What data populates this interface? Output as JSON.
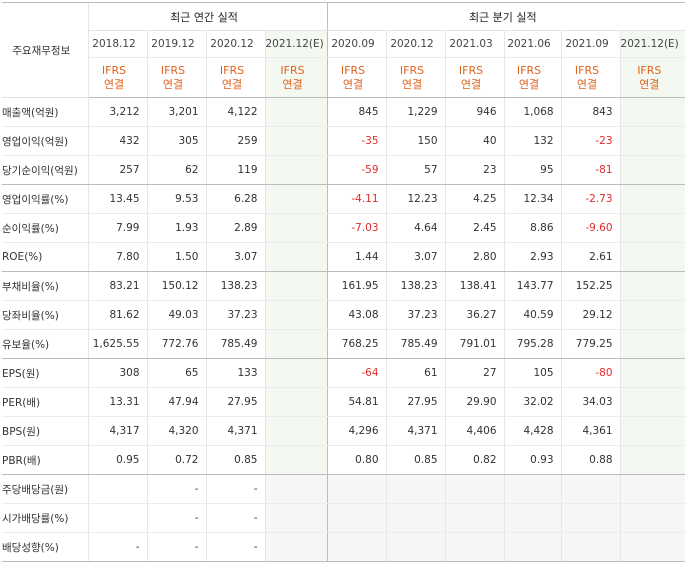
{
  "header": {
    "label_col": "주요재무정보",
    "annual_group": "최근 연간 실적",
    "quarterly_group": "최근 분기 실적",
    "annual_periods": [
      "2018.12",
      "2019.12",
      "2020.12",
      "2021.12(E)"
    ],
    "quarterly_periods": [
      "2020.09",
      "2020.12",
      "2021.03",
      "2021.06",
      "2021.09",
      "2021.12(E)"
    ],
    "ifrs_top": "IFRS",
    "ifrs_bottom": "연결"
  },
  "rows": [
    {
      "label": "매출액(억원)",
      "annual": [
        "3,212",
        "3,201",
        "4,122",
        ""
      ],
      "quarterly": [
        "845",
        "1,229",
        "946",
        "1,068",
        "843",
        ""
      ]
    },
    {
      "label": "영업이익(억원)",
      "annual": [
        "432",
        "305",
        "259",
        ""
      ],
      "quarterly": [
        "-35",
        "150",
        "40",
        "132",
        "-23",
        ""
      ]
    },
    {
      "label": "당기순이익(억원)",
      "annual": [
        "257",
        "62",
        "119",
        ""
      ],
      "quarterly": [
        "-59",
        "57",
        "23",
        "95",
        "-81",
        ""
      ]
    },
    {
      "label": "영업이익률(%)",
      "annual": [
        "13.45",
        "9.53",
        "6.28",
        ""
      ],
      "quarterly": [
        "-4.11",
        "12.23",
        "4.25",
        "12.34",
        "-2.73",
        ""
      ]
    },
    {
      "label": "순이익률(%)",
      "annual": [
        "7.99",
        "1.93",
        "2.89",
        ""
      ],
      "quarterly": [
        "-7.03",
        "4.64",
        "2.45",
        "8.86",
        "-9.60",
        ""
      ]
    },
    {
      "label": "ROE(%)",
      "annual": [
        "7.80",
        "1.50",
        "3.07",
        ""
      ],
      "quarterly": [
        "1.44",
        "3.07",
        "2.80",
        "2.93",
        "2.61",
        ""
      ]
    },
    {
      "label": "부채비율(%)",
      "annual": [
        "83.21",
        "150.12",
        "138.23",
        ""
      ],
      "quarterly": [
        "161.95",
        "138.23",
        "138.41",
        "143.77",
        "152.25",
        ""
      ]
    },
    {
      "label": "당좌비율(%)",
      "annual": [
        "81.62",
        "49.03",
        "37.23",
        ""
      ],
      "quarterly": [
        "43.08",
        "37.23",
        "36.27",
        "40.59",
        "29.12",
        ""
      ]
    },
    {
      "label": "유보율(%)",
      "annual": [
        "1,625.55",
        "772.76",
        "785.49",
        ""
      ],
      "quarterly": [
        "768.25",
        "785.49",
        "791.01",
        "795.28",
        "779.25",
        ""
      ]
    },
    {
      "label": "EPS(원)",
      "annual": [
        "308",
        "65",
        "133",
        ""
      ],
      "quarterly": [
        "-64",
        "61",
        "27",
        "105",
        "-80",
        ""
      ]
    },
    {
      "label": "PER(배)",
      "annual": [
        "13.31",
        "47.94",
        "27.95",
        ""
      ],
      "quarterly": [
        "54.81",
        "27.95",
        "29.90",
        "32.02",
        "34.03",
        ""
      ]
    },
    {
      "label": "BPS(원)",
      "annual": [
        "4,317",
        "4,320",
        "4,371",
        ""
      ],
      "quarterly": [
        "4,296",
        "4,371",
        "4,406",
        "4,428",
        "4,361",
        ""
      ]
    },
    {
      "label": "PBR(배)",
      "annual": [
        "0.95",
        "0.72",
        "0.85",
        ""
      ],
      "quarterly": [
        "0.80",
        "0.85",
        "0.82",
        "0.93",
        "0.88",
        ""
      ]
    },
    {
      "label": "주당배당금(원)",
      "annual": [
        "",
        "-",
        "-",
        ""
      ],
      "quarterly": [
        "",
        "",
        "",
        "",
        "",
        ""
      ]
    },
    {
      "label": "시가배당률(%)",
      "annual": [
        "",
        "-",
        "-",
        ""
      ],
      "quarterly": [
        "",
        "",
        "",
        "",
        "",
        ""
      ]
    },
    {
      "label": "배당성향(%)",
      "annual": [
        "-",
        "-",
        "-",
        ""
      ],
      "quarterly": [
        "",
        "",
        "",
        "",
        "",
        ""
      ]
    }
  ],
  "colors": {
    "negative": "#e32b2b",
    "ifrs_label": "#e2621b",
    "estimate_bg": "#f3f8f1",
    "estimate_text": "#5a8a3a"
  }
}
